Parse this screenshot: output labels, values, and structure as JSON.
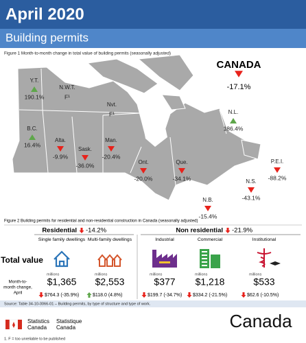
{
  "header": {
    "title": "April 2020",
    "subtitle": "Building permits"
  },
  "figure1": {
    "caption": "Figure 1  Month-to-month change in total value of building permits (seasonally adjusted)",
    "canada": {
      "label": "CANADA",
      "value": "-17.1%"
    },
    "regions": [
      {
        "label": "Y.T.",
        "value": "190.1%"
      },
      {
        "label": "N.W.T.",
        "value": "F¹"
      },
      {
        "label": "Nvt.",
        "value": "F¹"
      },
      {
        "label": "N.L.",
        "value": "186.4%"
      },
      {
        "label": "B.C.",
        "value": "16.4%"
      },
      {
        "label": "Alta.",
        "value": "-9.9%"
      },
      {
        "label": "Sask.",
        "value": "-36.0%"
      },
      {
        "label": "Man.",
        "value": "-20.4%"
      },
      {
        "label": "Ont.",
        "value": "-20.0%"
      },
      {
        "label": "Que.",
        "value": "-34.1%"
      },
      {
        "label": "P.E.I.",
        "value": "-88.2%"
      },
      {
        "label": "N.S.",
        "value": "-43.1%"
      },
      {
        "label": "N.B.",
        "value": "-15.4%"
      }
    ]
  },
  "figure2": {
    "caption": "Figure 2  Building permits for residential and non-residential construction in Canada (seasonally adjusted)",
    "residential": {
      "label": "Residential",
      "value": "-14.2%"
    },
    "non_residential": {
      "label": "Non residential",
      "value": "-21.9%"
    },
    "row_label_total": "Total value",
    "row_label_change": [
      "Month-to-",
      "month change,",
      "April"
    ],
    "columns": [
      {
        "name": "Single family dwellings",
        "unit": "millions",
        "total": "$1,365",
        "change": "$764.3 (-35.9%)"
      },
      {
        "name": "Multi-family dwellings",
        "unit": "millions",
        "total": "$2,553",
        "change": "$118.0 (4.8%)"
      },
      {
        "name": "Industrial",
        "unit": "millions",
        "total": "$377",
        "change": "$199.7 (-34.7%)"
      },
      {
        "name": "Commercial",
        "unit": "millions",
        "total": "$1,218",
        "change": "$334.2 (-21.5%)"
      },
      {
        "name": "Institutional",
        "unit": "millions",
        "total": "$533",
        "change": "$62.6 (-10.5%)"
      }
    ]
  },
  "source": "Source: Table 34-10-0066-01 – Building permits, by type of structure and type of work.",
  "footer": {
    "agency_en": [
      "Statistics",
      "Canada"
    ],
    "agency_fr": [
      "Statistique",
      "Canada"
    ],
    "wordmark": "Canada",
    "footnote": "1. F = too unreliable to be published"
  }
}
